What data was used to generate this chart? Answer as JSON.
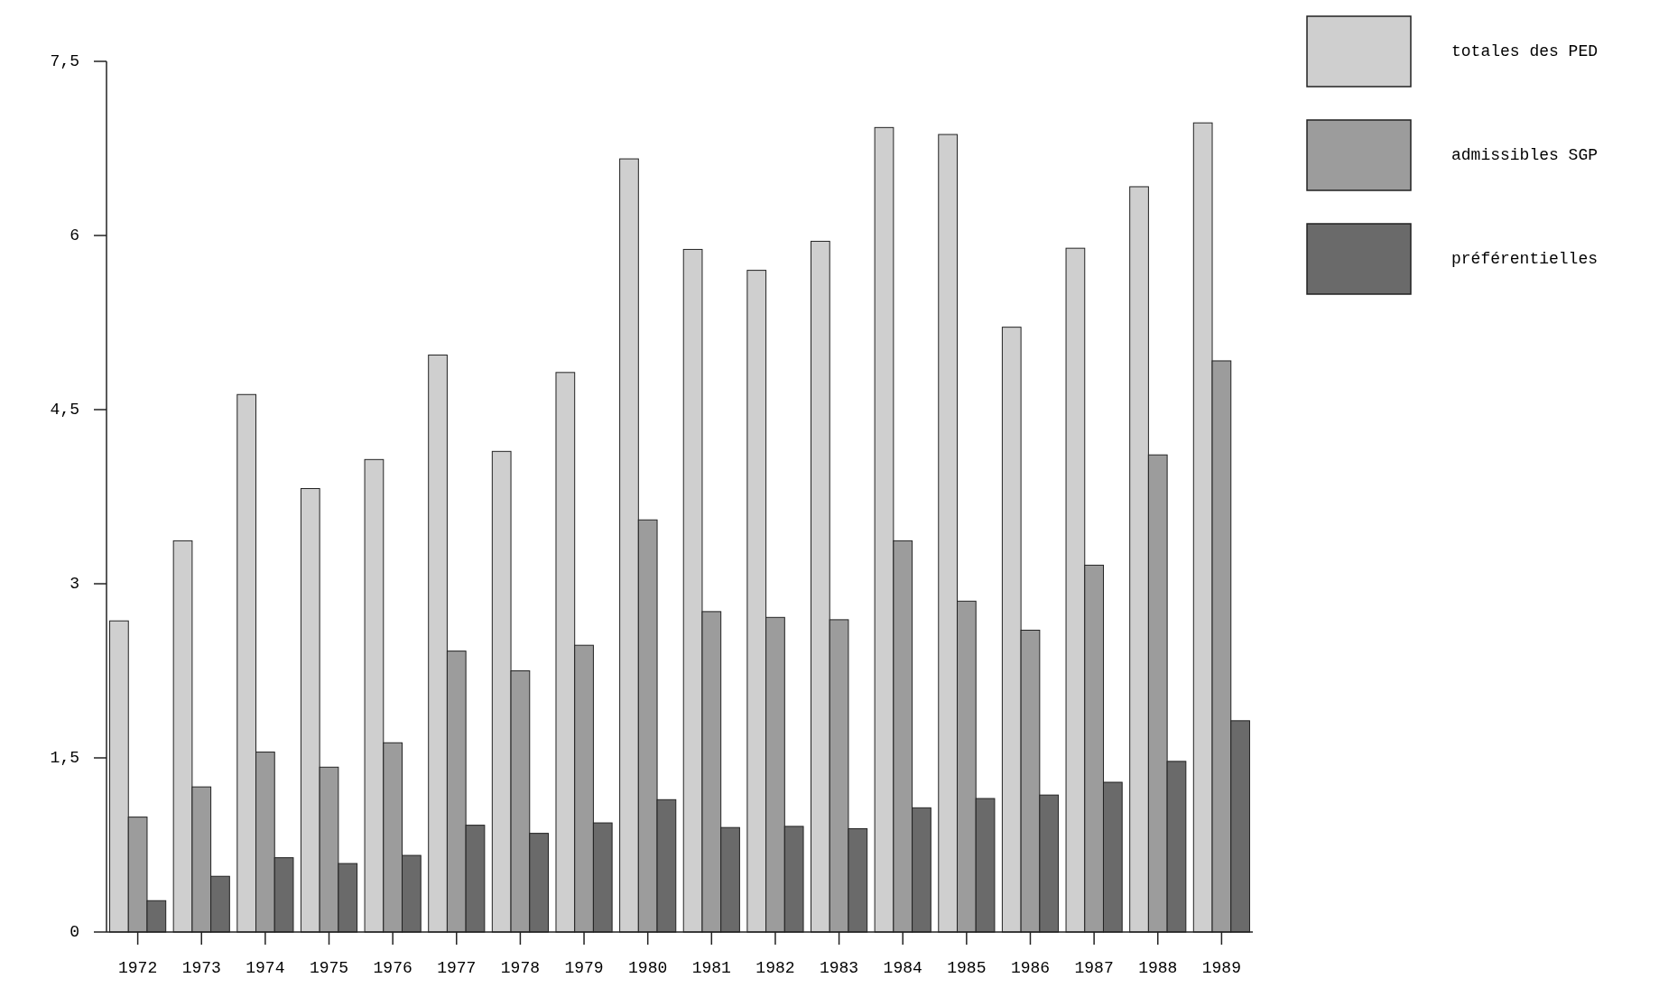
{
  "chart_data": {
    "type": "bar",
    "categories": [
      "1972",
      "1973",
      "1974",
      "1975",
      "1976",
      "1977",
      "1978",
      "1979",
      "1980",
      "1981",
      "1982",
      "1983",
      "1984",
      "1985",
      "1986",
      "1987",
      "1988",
      "1989"
    ],
    "series": [
      {
        "name": "totales des PED",
        "color": "#cfcfcf",
        "values": [
          2.68,
          3.37,
          4.63,
          3.82,
          4.07,
          4.97,
          4.14,
          4.82,
          6.66,
          5.88,
          5.7,
          5.95,
          6.93,
          6.87,
          5.21,
          5.89,
          6.42,
          6.97
        ]
      },
      {
        "name": "admissibles SGP",
        "color": "#9c9c9c",
        "values": [
          0.99,
          1.25,
          1.55,
          1.42,
          1.63,
          2.42,
          2.25,
          2.47,
          3.55,
          2.76,
          2.71,
          2.69,
          3.37,
          2.85,
          2.6,
          3.16,
          4.11,
          4.92
        ]
      },
      {
        "name": "préférentielles",
        "color": "#6a6a6a",
        "values": [
          0.27,
          0.48,
          0.64,
          0.59,
          0.66,
          0.92,
          0.85,
          0.94,
          1.14,
          0.9,
          0.91,
          0.89,
          1.07,
          1.15,
          1.18,
          1.29,
          1.47,
          1.82
        ]
      }
    ],
    "ylim": [
      0,
      7.5
    ],
    "yticks": [
      0,
      {
        "value": 1.5,
        "label": "1,5"
      },
      3,
      {
        "value": 4.5,
        "label": "4,5"
      },
      6,
      {
        "value": 7.5,
        "label": "7,5"
      }
    ],
    "legend": "top right",
    "grid": false
  }
}
